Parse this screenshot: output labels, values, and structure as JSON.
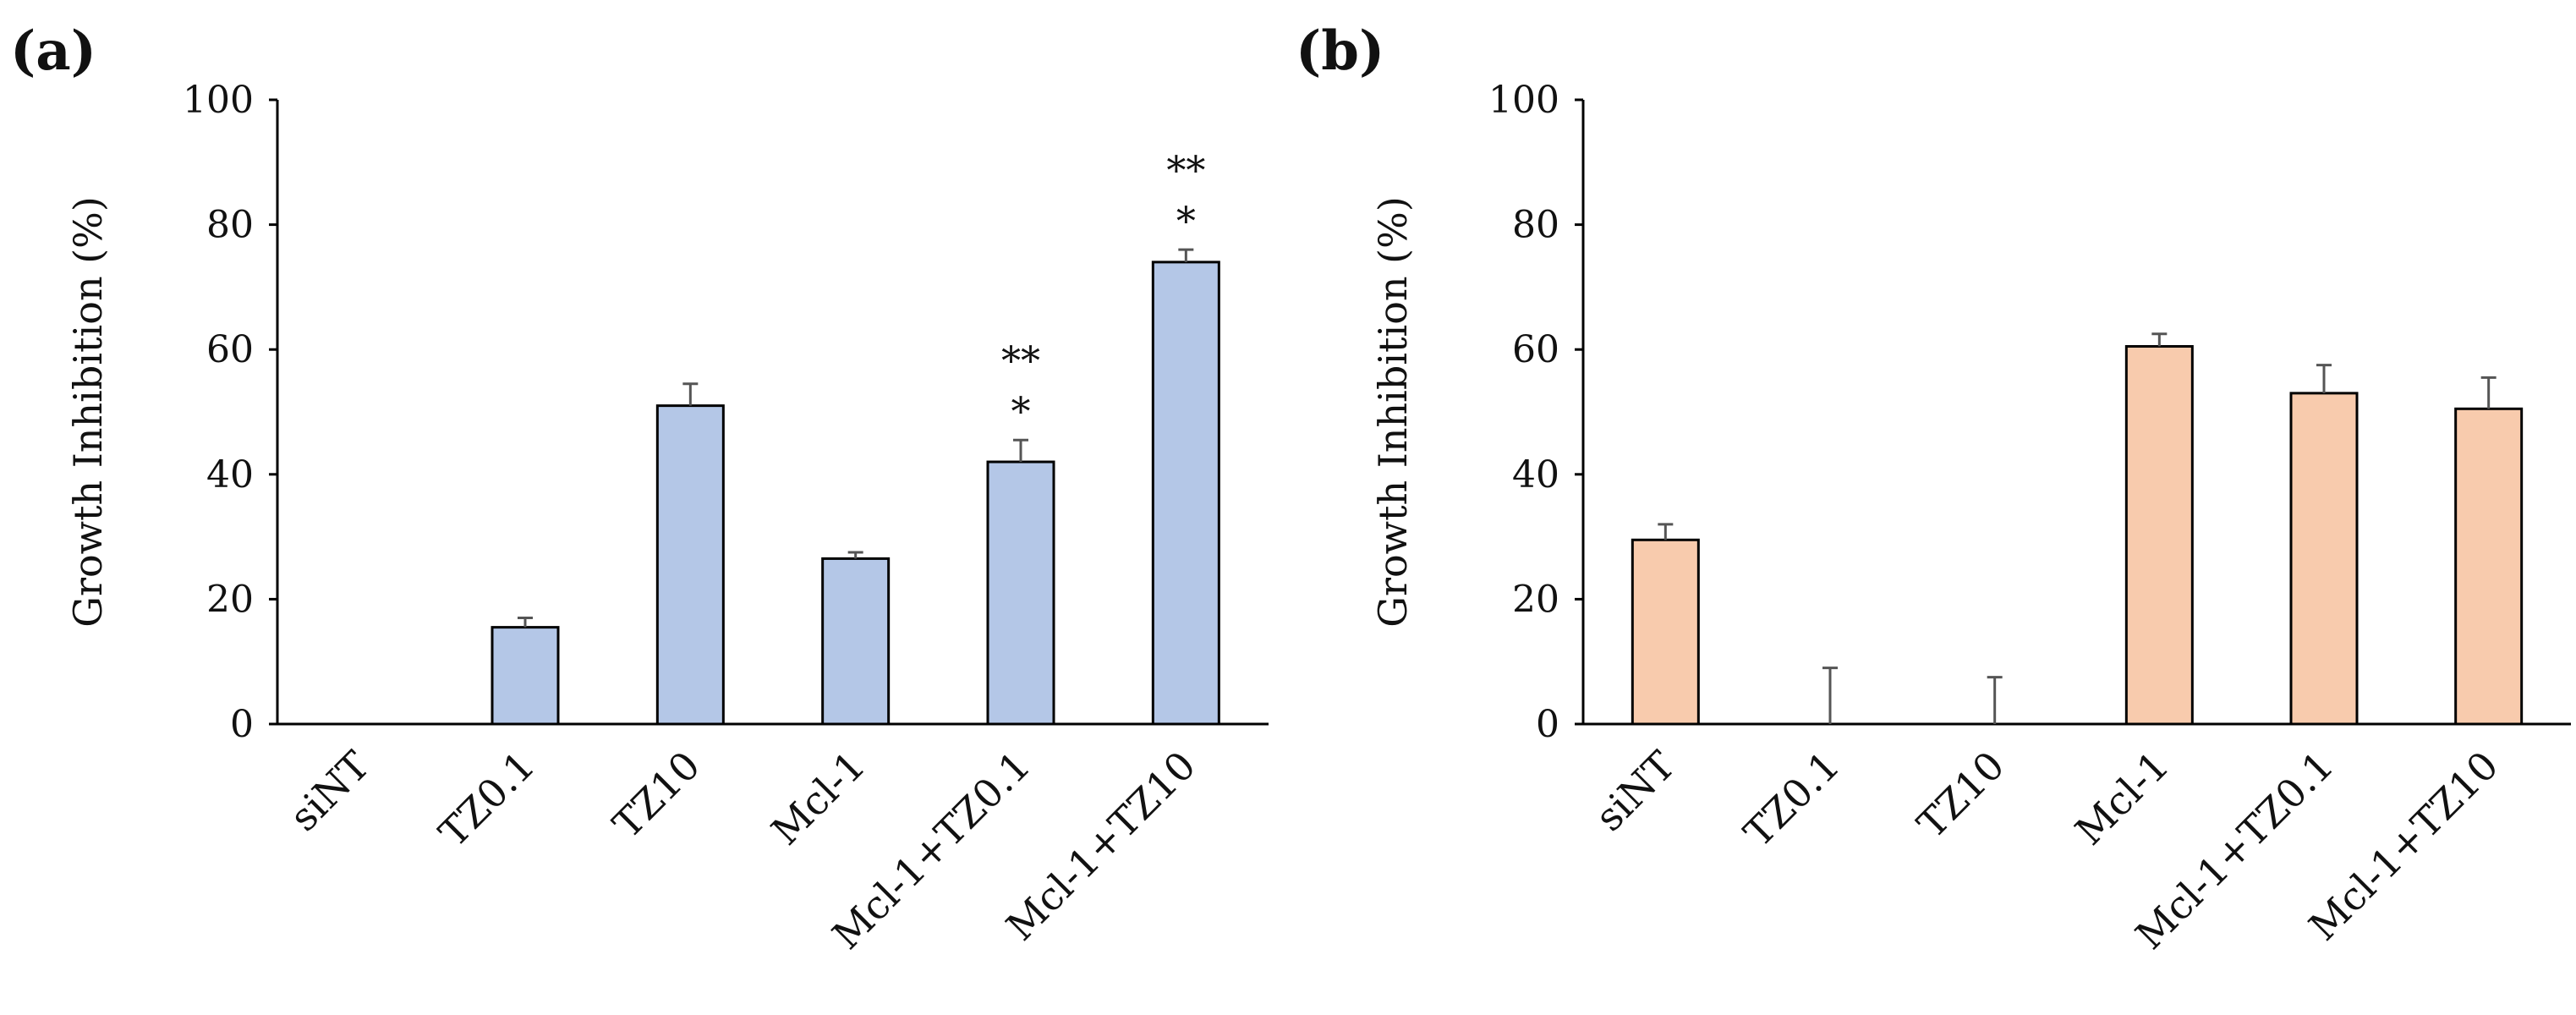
{
  "chart_data": [
    {
      "panel": "(a)",
      "type": "bar",
      "categories": [
        "siNT",
        "TZ0.1",
        "TZ10",
        "Mcl-1",
        "Mcl-1+TZ0.1",
        "Mcl-1+TZ10"
      ],
      "values": [
        0,
        15.5,
        51,
        26.5,
        42,
        74
      ],
      "errors": [
        0,
        1.5,
        3.5,
        1,
        3.5,
        2
      ],
      "significance": [
        "",
        "",
        "",
        "",
        "**\n*",
        "**\n*"
      ],
      "ylabel": "Growth Inhibition (%)",
      "ylim": [
        0,
        100
      ],
      "yticks": [
        0,
        20,
        40,
        60,
        80,
        100
      ],
      "bar_color": "#b4c7e7",
      "grid": false
    },
    {
      "panel": "(b)",
      "type": "bar",
      "categories": [
        "siNT",
        "TZ0.1",
        "TZ10",
        "Mcl-1",
        "Mcl-1+TZ0.1",
        "Mcl-1+TZ10"
      ],
      "values": [
        29.5,
        0,
        0,
        60.5,
        53,
        50.5
      ],
      "errors": [
        2.5,
        9,
        7.5,
        2,
        4.5,
        5
      ],
      "significance": [
        "",
        "",
        "",
        "",
        "",
        ""
      ],
      "ylabel": "Growth Inhibition (%)",
      "ylim": [
        0,
        100
      ],
      "yticks": [
        0,
        20,
        40,
        60,
        80,
        100
      ],
      "bar_color": "#f8cbad",
      "grid": false
    }
  ]
}
